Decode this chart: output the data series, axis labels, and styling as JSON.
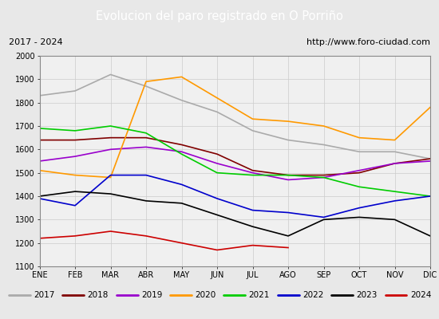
{
  "title": "Evolucion del paro registrado en O Porriño",
  "title_color": "#ffffff",
  "title_bg": "#4d90d5",
  "subtitle_left": "2017 - 2024",
  "subtitle_right": "http://www.foro-ciudad.com",
  "months": [
    "ENE",
    "FEB",
    "MAR",
    "ABR",
    "MAY",
    "JUN",
    "JUL",
    "AGO",
    "SEP",
    "OCT",
    "NOV",
    "DIC"
  ],
  "ylim": [
    1100,
    2000
  ],
  "yticks": [
    1100,
    1200,
    1300,
    1400,
    1500,
    1600,
    1700,
    1800,
    1900,
    2000
  ],
  "series": {
    "2017": {
      "color": "#aaaaaa",
      "data": [
        1830,
        1850,
        1920,
        1870,
        1810,
        1760,
        1680,
        1640,
        1620,
        1590,
        1590,
        1560
      ]
    },
    "2018": {
      "color": "#800000",
      "data": [
        1640,
        1640,
        1650,
        1650,
        1620,
        1580,
        1510,
        1490,
        1490,
        1500,
        1540,
        1560
      ]
    },
    "2019": {
      "color": "#9900cc",
      "data": [
        1550,
        1570,
        1600,
        1610,
        1590,
        1540,
        1500,
        1470,
        1480,
        1510,
        1540,
        1550
      ]
    },
    "2020": {
      "color": "#ff9900",
      "data": [
        1510,
        1490,
        1480,
        1890,
        1910,
        1820,
        1730,
        1720,
        1700,
        1650,
        1640,
        1780
      ]
    },
    "2021": {
      "color": "#00cc00",
      "data": [
        1690,
        1680,
        1700,
        1670,
        1580,
        1500,
        1490,
        1490,
        1480,
        1440,
        1420,
        1400
      ]
    },
    "2022": {
      "color": "#0000cc",
      "data": [
        1390,
        1360,
        1490,
        1490,
        1450,
        1390,
        1340,
        1330,
        1310,
        1350,
        1380,
        1400
      ]
    },
    "2023": {
      "color": "#000000",
      "data": [
        1400,
        1420,
        1410,
        1380,
        1370,
        1320,
        1270,
        1230,
        1300,
        1310,
        1300,
        1230
      ]
    },
    "2024": {
      "color": "#cc0000",
      "data": [
        1220,
        1230,
        1250,
        1230,
        1200,
        1170,
        1190,
        1180,
        null,
        null,
        null,
        null
      ]
    }
  },
  "bg_color": "#e8e8e8",
  "plot_bg": "#f0f0f0",
  "grid_color": "#cccccc",
  "border_color": "#888888"
}
